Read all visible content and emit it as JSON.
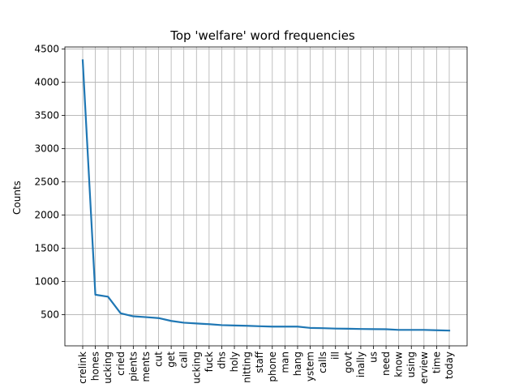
{
  "chart_data": {
    "type": "line",
    "title": "Top 'welfare' word frequencies",
    "xlabel": "",
    "ylabel": "Counts",
    "categories": [
      "crelink",
      "hones",
      "ucking",
      "cried",
      "pients",
      "ments",
      "cut",
      "get",
      "call",
      "ucking",
      "fuck",
      "dhs",
      "holy",
      "nitting",
      "staff",
      "phone",
      "man",
      "hang",
      "ystem",
      "calls",
      "ill",
      "govt",
      "inally",
      "us",
      "need",
      "know",
      "using",
      "erview",
      "time",
      "today"
    ],
    "values": [
      4330,
      800,
      770,
      520,
      475,
      462,
      448,
      405,
      378,
      367,
      356,
      342,
      336,
      332,
      325,
      320,
      320,
      320,
      300,
      296,
      290,
      288,
      284,
      282,
      280,
      270,
      270,
      270,
      265,
      260
    ],
    "yticks": [
      500,
      1000,
      1500,
      2000,
      2500,
      3000,
      3500,
      4000,
      4500
    ],
    "ylim": [
      30,
      4530
    ],
    "grid": true,
    "line_color": "#1f77b4"
  }
}
